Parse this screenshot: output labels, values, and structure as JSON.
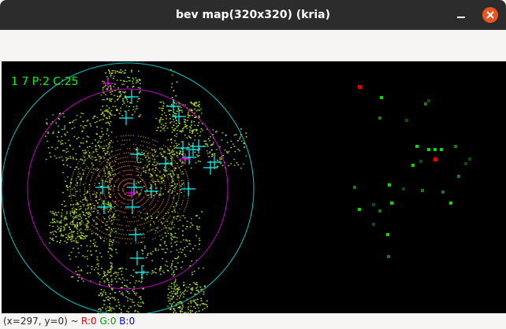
{
  "window": {
    "title": "bev map(320x320) (kria)",
    "minimize_icon": "minimize-icon",
    "close_icon": "close-icon",
    "close_color": "#e95420"
  },
  "overlay": {
    "text": "1 7 P:2 C:25",
    "text_color": "#00ff00"
  },
  "colors": {
    "range_circle_outer": "#00c8c8",
    "range_circle_inner": "#c800c8",
    "detection_cross": "#00ffff",
    "highlight_cross": "#ff00ff",
    "cluster_green": "#00e000",
    "cluster_red": "#e00000"
  },
  "status": {
    "position_text": "(x=297, y=0) ~",
    "r_text": "R:0",
    "g_text": "G:0",
    "b_text": "B:0"
  }
}
